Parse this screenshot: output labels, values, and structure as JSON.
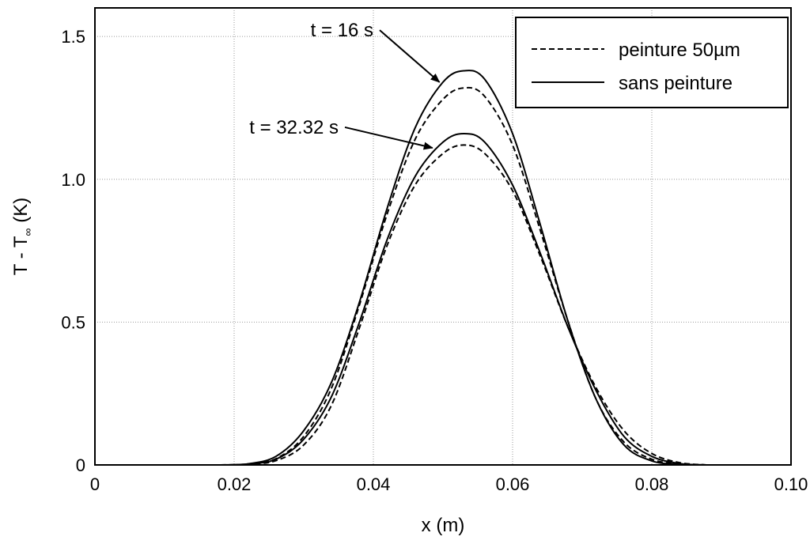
{
  "chart_data": {
    "type": "line",
    "title": "",
    "xlabel": "x (m)",
    "ylabel_parts": {
      "main": "T - T",
      "sub": "∞",
      "unit": " (K)"
    },
    "xlim": [
      0,
      0.1
    ],
    "ylim": [
      0,
      1.6
    ],
    "x_ticks": [
      0,
      0.02,
      0.04,
      0.06,
      0.08,
      0.1
    ],
    "x_tick_labels": [
      "0",
      "0.02",
      "0.04",
      "0.06",
      "0.08",
      "0.10"
    ],
    "y_ticks": [
      0,
      0.5,
      1.0,
      1.5
    ],
    "y_tick_labels": [
      "0",
      "0.5",
      "1.0",
      "1.5"
    ],
    "grid": true,
    "legend_position": "top-right",
    "legend": [
      {
        "label": "peinture 50µm",
        "style": "dashed"
      },
      {
        "label": "sans peinture",
        "style": "solid"
      }
    ],
    "x": [
      0.018,
      0.022,
      0.026,
      0.03,
      0.034,
      0.038,
      0.042,
      0.046,
      0.05,
      0.053,
      0.056,
      0.06,
      0.064,
      0.068,
      0.072,
      0.076,
      0.08,
      0.084,
      0.088
    ],
    "series": [
      {
        "time": "16 s",
        "style": "solid",
        "values": [
          0.0,
          0.004,
          0.03,
          0.12,
          0.29,
          0.57,
          0.9,
          1.18,
          1.34,
          1.38,
          1.35,
          1.16,
          0.84,
          0.5,
          0.23,
          0.07,
          0.014,
          0.002,
          0.0
        ]
      },
      {
        "time": "16 s",
        "style": "dashed",
        "values": [
          0.0,
          0.003,
          0.022,
          0.1,
          0.27,
          0.56,
          0.88,
          1.14,
          1.28,
          1.32,
          1.29,
          1.12,
          0.82,
          0.5,
          0.23,
          0.08,
          0.02,
          0.003,
          0.0
        ]
      },
      {
        "time": "32.32 s",
        "style": "solid",
        "values": [
          0.0,
          0.003,
          0.02,
          0.09,
          0.24,
          0.5,
          0.79,
          1.01,
          1.13,
          1.16,
          1.13,
          0.98,
          0.74,
          0.48,
          0.26,
          0.1,
          0.03,
          0.005,
          0.0
        ]
      },
      {
        "time": "32.32 s",
        "style": "dashed",
        "values": [
          0.0,
          0.002,
          0.015,
          0.07,
          0.21,
          0.48,
          0.77,
          0.98,
          1.09,
          1.12,
          1.09,
          0.96,
          0.73,
          0.48,
          0.27,
          0.12,
          0.04,
          0.008,
          0.0
        ]
      }
    ],
    "annotations": [
      {
        "text": "t =  16 s",
        "x": 0.04,
        "y": 1.5,
        "arrow_to": {
          "x": 0.0495,
          "y": 1.34
        }
      },
      {
        "text": "t =  32.32 s",
        "x": 0.035,
        "y": 1.16,
        "arrow_to": {
          "x": 0.0485,
          "y": 1.11
        }
      }
    ]
  }
}
